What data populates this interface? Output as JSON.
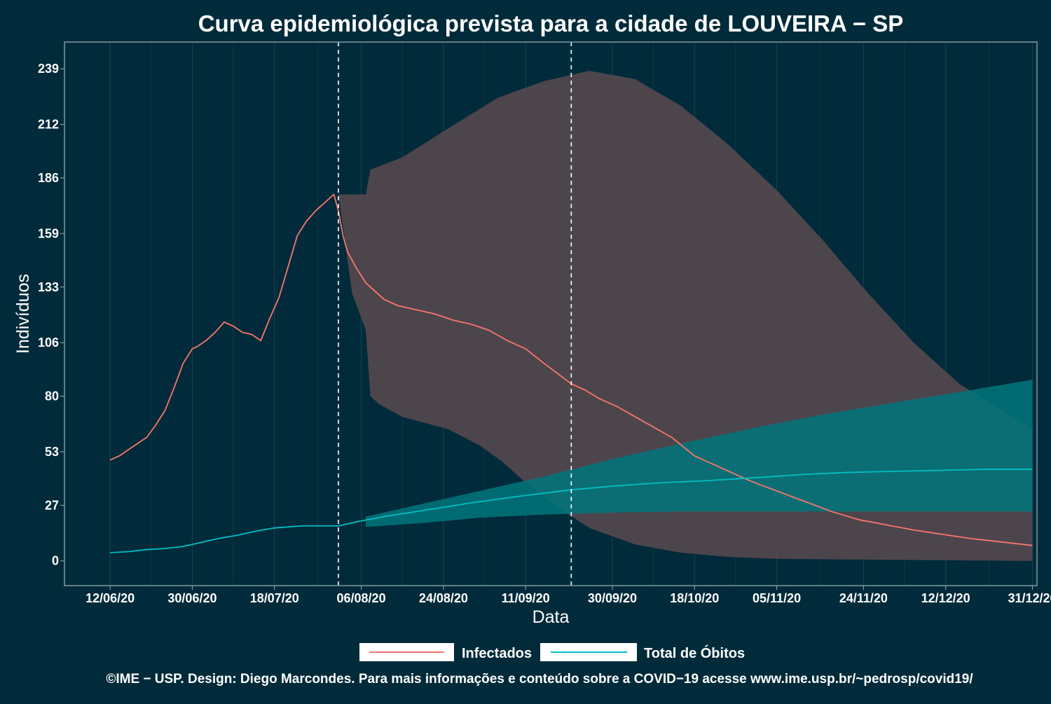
{
  "chart_data": {
    "type": "line",
    "title": "Curva epidemiológica prevista para a cidade de LOUVEIRA − SP",
    "xlabel": "Data",
    "ylabel": "Indivíduos",
    "x_start": "2020-06-12",
    "x_end": "2020-12-31",
    "xlim": [
      "2020-06-02",
      "2021-01-01"
    ],
    "ylim": [
      -12,
      252
    ],
    "x_ticks": [
      "2020-06-12",
      "2020-06-30",
      "2020-07-18",
      "2020-08-06",
      "2020-08-24",
      "2020-09-11",
      "2020-09-30",
      "2020-10-18",
      "2020-11-05",
      "2020-11-24",
      "2020-12-12",
      "2020-12-31"
    ],
    "x_tick_labels": [
      "12/06/20",
      "30/06/20",
      "18/07/20",
      "06/08/20",
      "24/08/20",
      "11/09/20",
      "30/09/20",
      "18/10/20",
      "05/11/20",
      "24/11/20",
      "12/12/20",
      "31/12/20"
    ],
    "y_ticks": [
      0,
      27,
      53,
      80,
      106,
      133,
      159,
      186,
      212,
      239
    ],
    "y_tick_labels": [
      "0",
      "27",
      "53",
      "80",
      "106",
      "133",
      "159",
      "186",
      "212",
      "239"
    ],
    "vlines": [
      "2020-08-01",
      "2020-09-21"
    ],
    "grid": true,
    "legend_position": "bottom",
    "colors": {
      "background": "#012b3a",
      "panel_border": "#7f9aa2",
      "grid": "#163f4c",
      "infected": "#f8766d",
      "deaths": "#00bfc4",
      "band_infected": "#5a4a50",
      "band_deaths": "#00767c"
    },
    "series": [
      {
        "name": "Infectados",
        "color": "#f8766d",
        "points": [
          [
            "2020-06-12",
            49
          ],
          [
            "2020-06-14",
            51
          ],
          [
            "2020-06-16",
            54
          ],
          [
            "2020-06-18",
            57
          ],
          [
            "2020-06-20",
            60
          ],
          [
            "2020-06-22",
            66
          ],
          [
            "2020-06-24",
            73
          ],
          [
            "2020-06-26",
            84
          ],
          [
            "2020-06-28",
            96
          ],
          [
            "2020-06-30",
            103
          ],
          [
            "2020-07-01",
            104
          ],
          [
            "2020-07-03",
            107
          ],
          [
            "2020-07-05",
            111
          ],
          [
            "2020-07-07",
            116
          ],
          [
            "2020-07-09",
            114
          ],
          [
            "2020-07-11",
            111
          ],
          [
            "2020-07-13",
            110
          ],
          [
            "2020-07-15",
            107
          ],
          [
            "2020-07-17",
            118
          ],
          [
            "2020-07-19",
            128
          ],
          [
            "2020-07-21",
            143
          ],
          [
            "2020-07-23",
            158
          ],
          [
            "2020-07-25",
            165
          ],
          [
            "2020-07-27",
            170
          ],
          [
            "2020-07-29",
            174
          ],
          [
            "2020-07-31",
            178
          ],
          [
            "2020-08-01",
            170
          ],
          [
            "2020-08-02",
            158
          ],
          [
            "2020-08-03",
            150
          ],
          [
            "2020-08-05",
            142
          ],
          [
            "2020-08-07",
            135
          ],
          [
            "2020-08-09",
            131
          ],
          [
            "2020-08-11",
            127
          ],
          [
            "2020-08-14",
            124
          ],
          [
            "2020-08-18",
            122
          ],
          [
            "2020-08-22",
            120
          ],
          [
            "2020-08-26",
            117
          ],
          [
            "2020-08-30",
            115
          ],
          [
            "2020-09-03",
            112
          ],
          [
            "2020-09-07",
            107
          ],
          [
            "2020-09-11",
            103
          ],
          [
            "2020-09-15",
            96
          ],
          [
            "2020-09-18",
            91
          ],
          [
            "2020-09-21",
            86
          ],
          [
            "2020-09-24",
            83
          ],
          [
            "2020-09-27",
            79
          ],
          [
            "2020-10-01",
            75
          ],
          [
            "2020-10-05",
            70
          ],
          [
            "2020-10-09",
            65
          ],
          [
            "2020-10-13",
            60
          ],
          [
            "2020-10-18",
            51
          ],
          [
            "2020-10-24",
            45
          ],
          [
            "2020-10-30",
            39
          ],
          [
            "2020-11-05",
            34
          ],
          [
            "2020-11-11",
            29
          ],
          [
            "2020-11-17",
            24
          ],
          [
            "2020-11-23",
            20
          ],
          [
            "2020-11-29",
            17.5
          ],
          [
            "2020-12-05",
            15
          ],
          [
            "2020-12-11",
            13
          ],
          [
            "2020-12-17",
            11
          ],
          [
            "2020-12-23",
            9.5
          ],
          [
            "2020-12-31",
            7.5
          ]
        ]
      },
      {
        "name": "Total de Óbitos",
        "color": "#00bfc4",
        "points": [
          [
            "2020-06-12",
            4
          ],
          [
            "2020-06-16",
            4.5
          ],
          [
            "2020-06-20",
            5.5
          ],
          [
            "2020-06-24",
            6
          ],
          [
            "2020-06-28",
            7
          ],
          [
            "2020-07-01",
            8.5
          ],
          [
            "2020-07-03",
            9.5
          ],
          [
            "2020-07-06",
            11
          ],
          [
            "2020-07-10",
            12.5
          ],
          [
            "2020-07-14",
            14.5
          ],
          [
            "2020-07-18",
            16
          ],
          [
            "2020-07-24",
            17
          ],
          [
            "2020-08-01",
            17
          ],
          [
            "2020-08-05",
            19
          ],
          [
            "2020-08-11",
            21.5
          ],
          [
            "2020-08-21",
            25
          ],
          [
            "2020-08-31",
            28.5
          ],
          [
            "2020-09-10",
            31.5
          ],
          [
            "2020-09-21",
            34.5
          ],
          [
            "2020-10-01",
            36.5
          ],
          [
            "2020-10-11",
            38
          ],
          [
            "2020-10-21",
            39
          ],
          [
            "2020-11-01",
            40.5
          ],
          [
            "2020-11-11",
            42
          ],
          [
            "2020-11-21",
            43
          ],
          [
            "2020-12-01",
            43.5
          ],
          [
            "2020-12-11",
            44
          ],
          [
            "2020-12-21",
            44.5
          ],
          [
            "2020-12-31",
            44.5
          ]
        ]
      }
    ],
    "bands": [
      {
        "color": "#5a4a50",
        "upper": [
          [
            "2020-08-01",
            178
          ],
          [
            "2020-08-07",
            178
          ],
          [
            "2020-08-08",
            190
          ],
          [
            "2020-08-15",
            196
          ],
          [
            "2020-08-25",
            210
          ],
          [
            "2020-09-05",
            225
          ],
          [
            "2020-09-15",
            233
          ],
          [
            "2020-09-25",
            238
          ],
          [
            "2020-10-05",
            234
          ],
          [
            "2020-10-15",
            221
          ],
          [
            "2020-10-25",
            203
          ],
          [
            "2020-11-05",
            180
          ],
          [
            "2020-11-15",
            156
          ],
          [
            "2020-11-25",
            130
          ],
          [
            "2020-12-05",
            106
          ],
          [
            "2020-12-15",
            86
          ],
          [
            "2020-12-31",
            64
          ]
        ],
        "lower": [
          [
            "2020-08-01",
            178
          ],
          [
            "2020-08-04",
            130
          ],
          [
            "2020-08-07",
            112
          ],
          [
            "2020-08-08",
            80
          ],
          [
            "2020-08-10",
            76
          ],
          [
            "2020-08-15",
            70
          ],
          [
            "2020-08-25",
            64
          ],
          [
            "2020-09-01",
            56
          ],
          [
            "2020-09-06",
            48
          ],
          [
            "2020-09-11",
            38
          ],
          [
            "2020-09-18",
            26
          ],
          [
            "2020-09-25",
            16
          ],
          [
            "2020-10-05",
            8
          ],
          [
            "2020-10-15",
            4
          ],
          [
            "2020-10-25",
            2
          ],
          [
            "2020-11-05",
            1
          ],
          [
            "2020-12-31",
            0
          ]
        ]
      },
      {
        "color": "#00767c",
        "upper": [
          [
            "2020-08-07",
            21.5
          ],
          [
            "2020-08-20",
            28
          ],
          [
            "2020-09-01",
            34
          ],
          [
            "2020-09-15",
            41
          ],
          [
            "2020-10-01",
            50
          ],
          [
            "2020-10-15",
            57
          ],
          [
            "2020-11-01",
            65
          ],
          [
            "2020-11-15",
            71
          ],
          [
            "2020-12-01",
            77
          ],
          [
            "2020-12-15",
            82
          ],
          [
            "2020-12-31",
            88
          ]
        ],
        "lower": [
          [
            "2020-08-07",
            16.5
          ],
          [
            "2020-08-20",
            18.5
          ],
          [
            "2020-09-01",
            21
          ],
          [
            "2020-09-15",
            22.5
          ],
          [
            "2020-10-01",
            23.5
          ],
          [
            "2020-10-15",
            24
          ],
          [
            "2020-11-01",
            24
          ],
          [
            "2020-12-31",
            24
          ]
        ]
      }
    ]
  },
  "legend": {
    "items": [
      {
        "label": "Infectados"
      },
      {
        "label": "Total de Óbitos"
      }
    ]
  },
  "footer": {
    "credit": "©IME − USP. Design: Diego Marcondes. Para mais informações e conteúdo sobre a COVID−19 acesse www.ime.usp.br/~pedrosp/covid19/"
  }
}
